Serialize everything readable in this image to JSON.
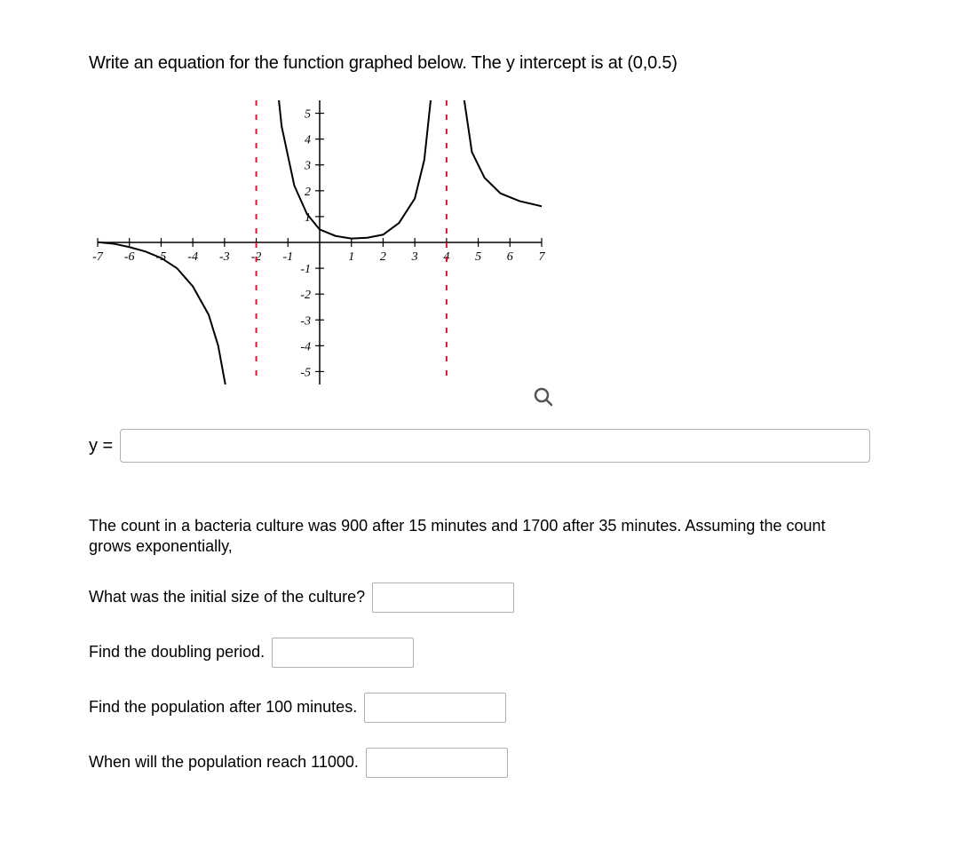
{
  "question1": {
    "prompt": "Write an equation for the function graphed below. The y intercept is at (0,0.5)",
    "answer_label": "y =",
    "answer_value": "",
    "graph": {
      "xlim": [
        -7,
        7
      ],
      "ylim": [
        -5.5,
        5.5
      ],
      "xtick_labels": [
        "-7",
        "-6",
        "-5",
        "-4",
        "-3",
        "-2",
        "-1",
        "1",
        "2",
        "3",
        "4",
        "5",
        "6",
        "7"
      ],
      "xtick_values": [
        -7,
        -6,
        -5,
        -4,
        -3,
        -2,
        -1,
        1,
        2,
        3,
        4,
        5,
        6,
        7
      ],
      "ytick_labels": [
        "5",
        "4",
        "3",
        "2",
        "1",
        "-1",
        "-2",
        "-3",
        "-4",
        "-5"
      ],
      "ytick_values": [
        5,
        4,
        3,
        2,
        1,
        -1,
        -2,
        -3,
        -4,
        -5
      ],
      "asymptotes_x": [
        -2,
        4
      ],
      "asymptote_color": "#e81123",
      "curve_color": "#000000",
      "axis_color": "#000000",
      "tick_fontsize": 14,
      "tick_font_style": "italic",
      "background": "#ffffff",
      "curve_segments": [
        {
          "points": [
            [
              -7.2,
              0.02
            ],
            [
              -7.0,
              0.01
            ],
            [
              -6.5,
              -0.05
            ],
            [
              -6.0,
              -0.18
            ],
            [
              -5.5,
              -0.35
            ],
            [
              -5.0,
              -0.6
            ],
            [
              -4.5,
              -1.0
            ],
            [
              -4.0,
              -1.7
            ],
            [
              -3.5,
              -2.8
            ],
            [
              -3.2,
              -4.0
            ],
            [
              -2.9,
              -6.0
            ],
            [
              -2.6,
              -9.5
            ],
            [
              -2.3,
              -20.0
            ]
          ]
        },
        {
          "points": [
            [
              -1.8,
              25.0
            ],
            [
              -1.7,
              14.0
            ],
            [
              -1.5,
              8.0
            ],
            [
              -1.2,
              4.5
            ],
            [
              -0.8,
              2.2
            ],
            [
              -0.4,
              1.1
            ],
            [
              0.0,
              0.5
            ],
            [
              0.5,
              0.25
            ],
            [
              1.0,
              0.15
            ],
            [
              1.5,
              0.18
            ],
            [
              2.0,
              0.3
            ],
            [
              2.5,
              0.75
            ],
            [
              3.0,
              1.7
            ],
            [
              3.3,
              3.2
            ],
            [
              3.5,
              5.5
            ],
            [
              3.7,
              12.0
            ],
            [
              3.85,
              25.0
            ]
          ]
        },
        {
          "points": [
            [
              4.15,
              25.0
            ],
            [
              4.3,
              12.0
            ],
            [
              4.5,
              6.0
            ],
            [
              4.8,
              3.5
            ],
            [
              5.2,
              2.5
            ],
            [
              5.7,
              1.9
            ],
            [
              6.3,
              1.6
            ],
            [
              7.0,
              1.4
            ],
            [
              7.2,
              1.35
            ]
          ]
        }
      ]
    }
  },
  "question2": {
    "intro": "The count in a bacteria culture was 900 after 15 minutes and 1700 after 35 minutes. Assuming the count grows exponentially,",
    "lines": [
      {
        "label": "What was the initial size of the culture?",
        "value": ""
      },
      {
        "label": "Find the doubling period.",
        "value": ""
      },
      {
        "label": "Find the population after 100 minutes.",
        "value": ""
      },
      {
        "label": "When will the population reach 11000.",
        "value": ""
      }
    ]
  }
}
